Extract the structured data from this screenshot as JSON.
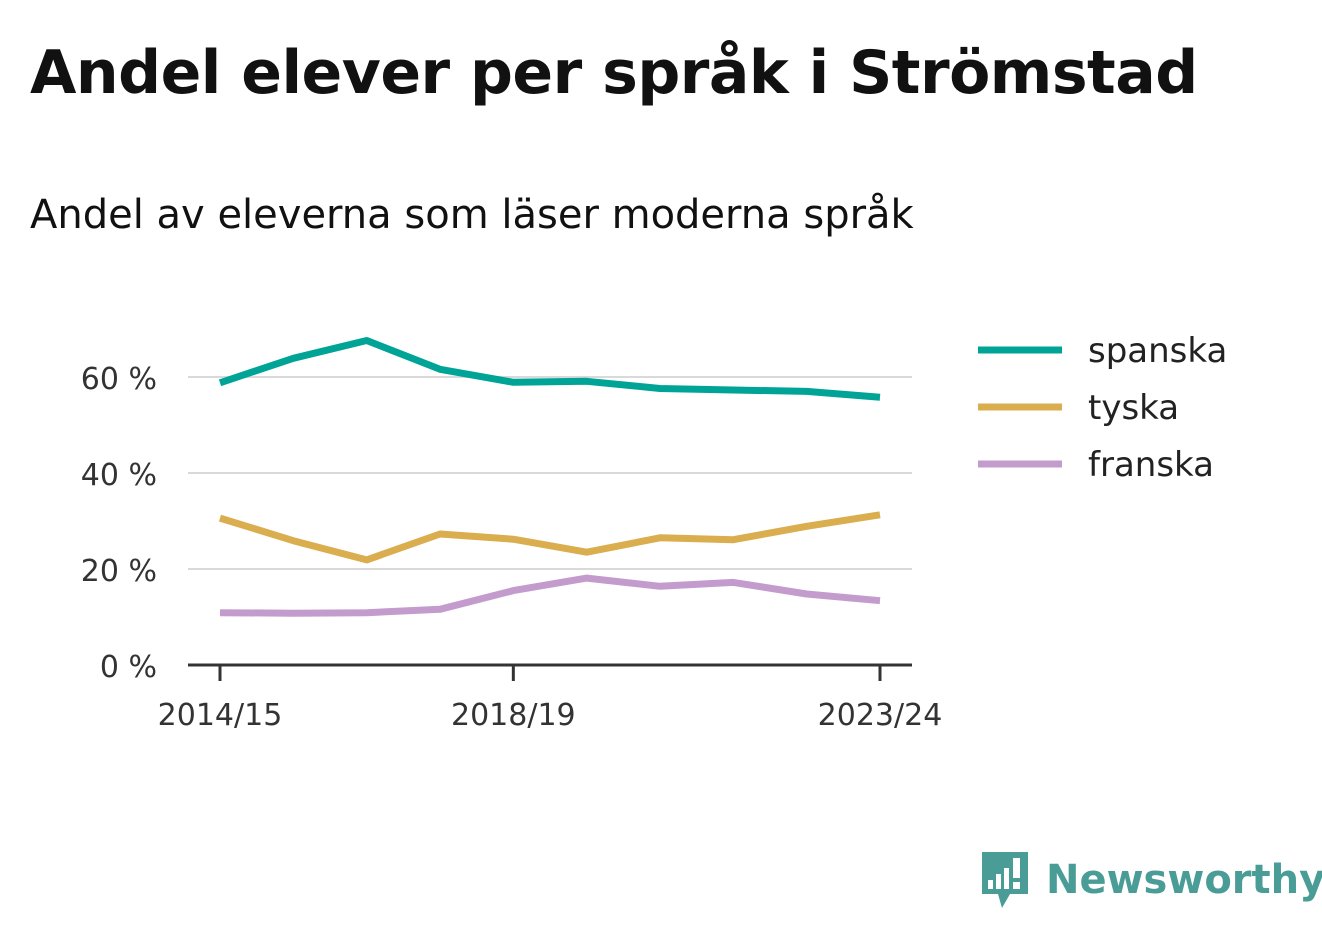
{
  "title": "Andel elever per språk i Strömstad",
  "subtitle": "Andel av eleverna som läser moderna språk",
  "brand": {
    "name": "Newsworthy",
    "icon": "newsworthy-logo-icon",
    "color": "#4a9d96"
  },
  "chart_data": {
    "type": "line",
    "x": [
      "2014/15",
      "2015/16",
      "2016/17",
      "2017/18",
      "2018/19",
      "2019/20",
      "2020/21",
      "2021/22",
      "2022/23",
      "2023/24"
    ],
    "x_ticks": [
      "2014/15",
      "2018/19",
      "2023/24"
    ],
    "ylim": [
      0,
      70
    ],
    "y_ticks": [
      0,
      20,
      40,
      60
    ],
    "y_tick_labels": [
      "0 %",
      "20 %",
      "40 %",
      "60 %"
    ],
    "grid": true,
    "legend_position": "top-right",
    "series": [
      {
        "name": "spanska",
        "color": "#00a497",
        "values": [
          58.8,
          63.9,
          67.6,
          61.6,
          58.9,
          59.1,
          57.6,
          57.3,
          57.0,
          55.8
        ]
      },
      {
        "name": "tyska",
        "color": "#daad4f",
        "values": [
          30.6,
          25.9,
          21.9,
          27.3,
          26.2,
          23.5,
          26.5,
          26.1,
          28.9,
          31.3
        ]
      },
      {
        "name": "franska",
        "color": "#c39bcd",
        "values": [
          10.9,
          10.8,
          10.9,
          11.6,
          15.5,
          18.1,
          16.4,
          17.2,
          14.8,
          13.4
        ]
      }
    ]
  }
}
